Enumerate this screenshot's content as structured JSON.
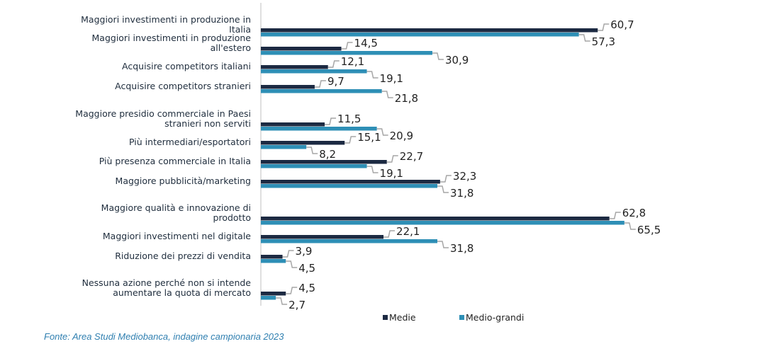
{
  "chart_data": {
    "type": "bar",
    "orientation": "horizontal",
    "categories": [
      "Maggiori investimenti in produzione in Italia",
      "Maggiori investimenti in produzione all'estero",
      "Acquisire competitors italiani",
      "Acquisire competitors stranieri",
      "Maggiore presidio commerciale in Paesi stranieri non serviti",
      "Più intermediari/esportatori",
      "Più presenza commerciale in Italia",
      "Maggiore pubblicità/marketing",
      "Maggiore qualità e innovazione di prodotto",
      "Maggiori investimenti nel digitale",
      "Riduzione dei prezzi di vendita",
      "Nessuna azione perché non si intende aumentare la quota di mercato"
    ],
    "series": [
      {
        "name": "Medie",
        "color": "#1c2a42",
        "values": [
          60.7,
          14.5,
          12.1,
          9.7,
          11.5,
          15.1,
          22.7,
          32.3,
          62.8,
          22.1,
          3.9,
          4.5
        ],
        "labels": [
          "60,7",
          "14,5",
          "12,1",
          "9,7",
          "11,5",
          "15,1",
          "22,7",
          "32,3",
          "62,8",
          "22,1",
          "3,9",
          "4,5"
        ]
      },
      {
        "name": "Medio-grandi",
        "color": "#2e8fb6",
        "values": [
          57.3,
          30.9,
          19.1,
          21.8,
          20.9,
          8.2,
          19.1,
          31.8,
          65.5,
          31.8,
          4.5,
          2.7
        ],
        "labels": [
          "57,3",
          "30,9",
          "19,1",
          "21,8",
          "20,9",
          "8,2",
          "19,1",
          "31,8",
          "65,5",
          "31,8",
          "4,5",
          "2,7"
        ]
      }
    ],
    "xlim": [
      0,
      70
    ],
    "legend_position": "bottom",
    "grid": false
  },
  "source": "Fonte: Area Studi Mediobanca, indagine campionaria 2023"
}
